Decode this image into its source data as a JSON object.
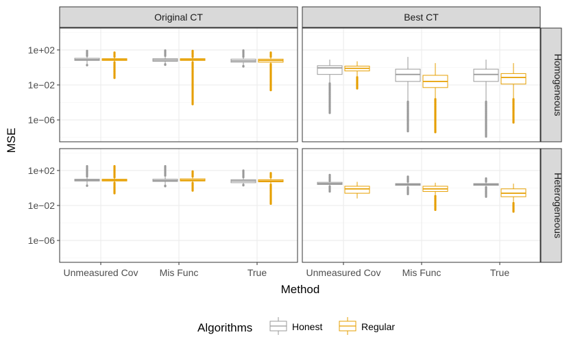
{
  "chart_data": {
    "type": "boxplot",
    "xlabel": "Method",
    "ylabel": "MSE",
    "y_scale": "log10",
    "ylim_log10": [
      -8.5,
      4.5
    ],
    "y_ticks": [
      {
        "log10": 2,
        "label": "1e+02"
      },
      {
        "log10": -2,
        "label": "1e−02"
      },
      {
        "log10": -6,
        "label": "1e−06"
      }
    ],
    "categories": [
      "Unmeasured Cov",
      "Mis Func",
      "True"
    ],
    "columns": [
      "Original CT",
      "Best CT"
    ],
    "rows": [
      "Homogeneous",
      "Heterogeneous"
    ],
    "legend": {
      "title": "Algorithms",
      "position": "bottom",
      "entries": [
        {
          "name": "Honest",
          "color": "#999999"
        },
        {
          "name": "Regular",
          "color": "#E69F00"
        }
      ]
    },
    "panels": [
      {
        "column": "Original CT",
        "row": "Homogeneous",
        "groups": [
          {
            "category": "Unmeasured Cov",
            "series": "Honest",
            "q1": 0.8,
            "median": 0.9,
            "q3": 1.05,
            "lo": 0.3,
            "hi": 1.2,
            "out_lo": 0.25,
            "out_hi": 1.9
          },
          {
            "category": "Unmeasured Cov",
            "series": "Regular",
            "q1": 0.8,
            "median": 0.9,
            "q3": 1.0,
            "lo": 0.7,
            "hi": 1.1,
            "out_lo": -1.2,
            "out_hi": 1.7
          },
          {
            "category": "Mis Func",
            "series": "Honest",
            "q1": 0.7,
            "median": 0.85,
            "q3": 1.0,
            "lo": 0.4,
            "hi": 1.2,
            "out_lo": 0.3,
            "out_hi": 1.95
          },
          {
            "category": "Mis Func",
            "series": "Regular",
            "q1": 0.8,
            "median": 0.9,
            "q3": 1.0,
            "lo": 0.7,
            "hi": 1.1,
            "out_lo": -4.2,
            "out_hi": 1.9
          },
          {
            "category": "True",
            "series": "Honest",
            "q1": 0.6,
            "median": 0.75,
            "q3": 0.95,
            "lo": 0.2,
            "hi": 1.1,
            "out_lo": 0.1,
            "out_hi": 1.95
          },
          {
            "category": "True",
            "series": "Regular",
            "q1": 0.6,
            "median": 0.8,
            "q3": 0.95,
            "lo": 0.5,
            "hi": 1.1,
            "out_lo": -2.6,
            "out_hi": 1.7
          }
        ]
      },
      {
        "column": "Best CT",
        "row": "Homogeneous",
        "groups": [
          {
            "category": "Unmeasured Cov",
            "series": "Honest",
            "q1": -0.8,
            "median": -0.05,
            "q3": 0.2,
            "lo": -1.7,
            "hi": 0.9,
            "out_lo": -5.2,
            "out_hi": null
          },
          {
            "category": "Unmeasured Cov",
            "series": "Regular",
            "q1": -0.4,
            "median": -0.1,
            "q3": 0.15,
            "lo": -1.0,
            "hi": 0.7,
            "out_lo": -2.4,
            "out_hi": null
          },
          {
            "category": "Mis Func",
            "series": "Honest",
            "q1": -1.6,
            "median": -0.8,
            "q3": -0.2,
            "lo": -3.8,
            "hi": 1.2,
            "out_lo": -7.3,
            "out_hi": null
          },
          {
            "category": "Mis Func",
            "series": "Regular",
            "q1": -2.3,
            "median": -1.6,
            "q3": -0.9,
            "lo": -3.5,
            "hi": 0.5,
            "out_lo": -7.4,
            "out_hi": null
          },
          {
            "category": "True",
            "series": "Honest",
            "q1": -1.6,
            "median": -0.8,
            "q3": -0.2,
            "lo": -3.8,
            "hi": 0.9,
            "out_lo": -7.9,
            "out_hi": null
          },
          {
            "category": "True",
            "series": "Regular",
            "q1": -1.9,
            "median": -1.15,
            "q3": -0.7,
            "lo": -3.5,
            "hi": 0.5,
            "out_lo": -6.3,
            "out_hi": null
          }
        ]
      },
      {
        "column": "Original CT",
        "row": "Heterogeneous",
        "groups": [
          {
            "category": "Unmeasured Cov",
            "series": "Honest",
            "q1": 0.8,
            "median": 0.9,
            "q3": 1.0,
            "lo": 0.3,
            "hi": 1.2,
            "out_lo": 0.25,
            "out_hi": 2.5
          },
          {
            "category": "Unmeasured Cov",
            "series": "Regular",
            "q1": 0.8,
            "median": 0.9,
            "q3": 1.0,
            "lo": 0.7,
            "hi": 1.1,
            "out_lo": -0.6,
            "out_hi": 2.5
          },
          {
            "category": "Mis Func",
            "series": "Honest",
            "q1": 0.75,
            "median": 0.85,
            "q3": 1.0,
            "lo": 0.3,
            "hi": 1.3,
            "out_lo": 0.2,
            "out_hi": 2.5
          },
          {
            "category": "Mis Func",
            "series": "Regular",
            "q1": 0.8,
            "median": 0.9,
            "q3": 1.05,
            "lo": 0.7,
            "hi": 1.2,
            "out_lo": -0.3,
            "out_hi": 1.9
          },
          {
            "category": "True",
            "series": "Honest",
            "q1": 0.6,
            "median": 0.8,
            "q3": 0.95,
            "lo": 0.4,
            "hi": 1.1,
            "out_lo": 0.3,
            "out_hi": 2.0
          },
          {
            "category": "True",
            "series": "Regular",
            "q1": 0.7,
            "median": 0.8,
            "q3": 0.95,
            "lo": 0.5,
            "hi": 1.1,
            "out_lo": -1.8,
            "out_hi": 1.7
          }
        ]
      },
      {
        "column": "Best CT",
        "row": "Heterogeneous",
        "groups": [
          {
            "category": "Unmeasured Cov",
            "series": "Honest",
            "q1": 0.4,
            "median": 0.5,
            "q3": 0.65,
            "lo": 0.3,
            "hi": 0.7,
            "out_lo": -0.4,
            "out_hi": 1.5
          },
          {
            "category": "Unmeasured Cov",
            "series": "Regular",
            "q1": -0.6,
            "median": -0.1,
            "q3": 0.2,
            "lo": -1.2,
            "hi": 0.7,
            "out_lo": null,
            "out_hi": null
          },
          {
            "category": "Mis Func",
            "series": "Honest",
            "q1": 0.3,
            "median": 0.4,
            "q3": 0.5,
            "lo": 0.2,
            "hi": 0.6,
            "out_lo": -0.7,
            "out_hi": 1.3
          },
          {
            "category": "Mis Func",
            "series": "Regular",
            "q1": -0.4,
            "median": -0.1,
            "q3": 0.2,
            "lo": -0.8,
            "hi": 0.6,
            "out_lo": -2.5,
            "out_hi": null
          },
          {
            "category": "True",
            "series": "Honest",
            "q1": 0.3,
            "median": 0.4,
            "q3": 0.5,
            "lo": 0.2,
            "hi": 0.6,
            "out_lo": -1.0,
            "out_hi": 1.1
          },
          {
            "category": "True",
            "series": "Regular",
            "q1": -1.0,
            "median": -0.6,
            "q3": -0.1,
            "lo": -1.6,
            "hi": 0.5,
            "out_lo": -2.7,
            "out_hi": null
          }
        ]
      }
    ]
  }
}
